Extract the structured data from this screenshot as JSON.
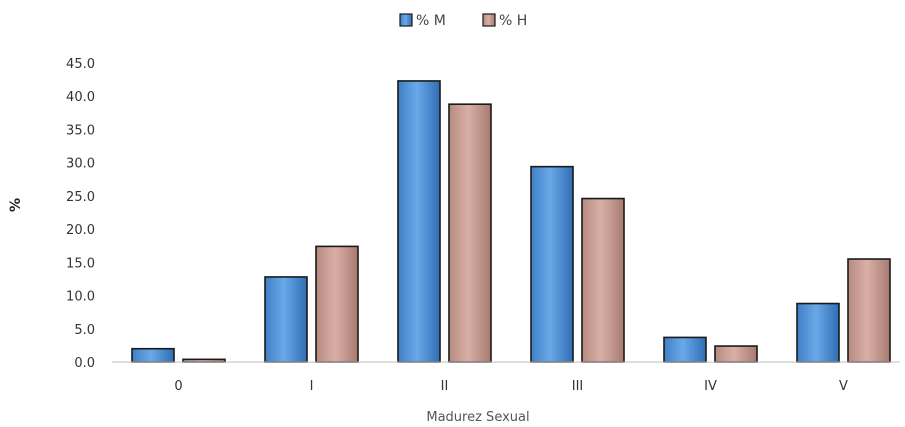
{
  "chart_data": {
    "type": "bar",
    "categories": [
      "0",
      "I",
      "II",
      "III",
      "IV",
      "V"
    ],
    "series": [
      {
        "name": "% M",
        "values": [
          2.0,
          12.8,
          42.3,
          29.4,
          3.7,
          8.8
        ],
        "color": "#4a8fd6"
      },
      {
        "name": "% H",
        "values": [
          0.4,
          17.4,
          38.8,
          24.6,
          2.4,
          15.5
        ],
        "color": "#c79a90"
      }
    ],
    "xlabel": "Madurez Sexual",
    "ylabel": "%",
    "ylim": [
      0,
      45
    ],
    "yticks": [
      "0.0",
      "5.0",
      "10.0",
      "15.0",
      "20.0",
      "25.0",
      "30.0",
      "35.0",
      "40.0",
      "45.0"
    ],
    "legend_position": "top-center",
    "grid": false
  }
}
